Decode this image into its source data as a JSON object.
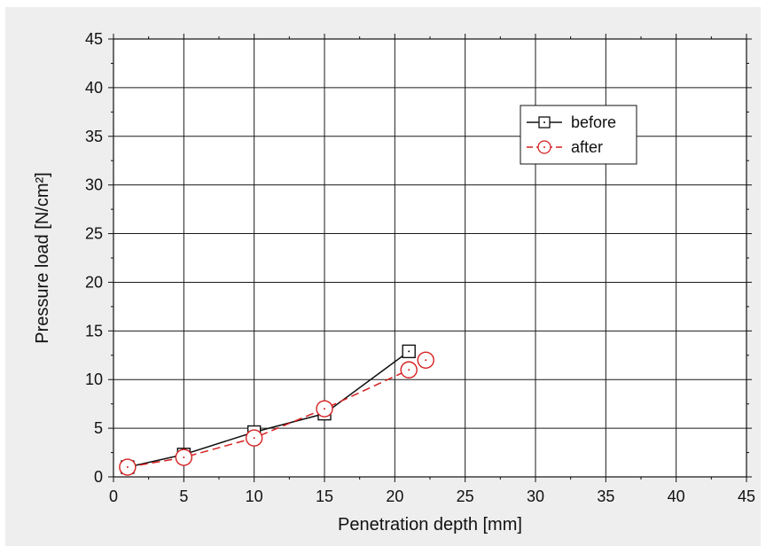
{
  "chart_data": {
    "type": "line",
    "title": "",
    "xlabel": "Penetration depth [mm]",
    "ylabel": "Pressure load [N/cm²]",
    "xlim": [
      0,
      45
    ],
    "ylim": [
      0,
      45
    ],
    "x_ticks": [
      0,
      5,
      10,
      15,
      20,
      25,
      30,
      35,
      40,
      45
    ],
    "y_ticks": [
      0,
      5,
      10,
      15,
      20,
      25,
      30,
      35,
      40,
      45
    ],
    "grid": true,
    "legend_position": "top-right",
    "series": [
      {
        "name": "before",
        "color": "#111111",
        "marker": "square",
        "line": "solid",
        "x": [
          1,
          5,
          10,
          15,
          21
        ],
        "y": [
          1.0,
          2.3,
          4.6,
          6.5,
          12.9
        ]
      },
      {
        "name": "after",
        "color": "#d42020",
        "marker": "circle",
        "line": "dashed",
        "x": [
          1,
          5,
          10,
          15,
          21,
          22.2
        ],
        "y": [
          1.0,
          2.0,
          4.0,
          7.0,
          11.0,
          12.0
        ]
      }
    ]
  }
}
